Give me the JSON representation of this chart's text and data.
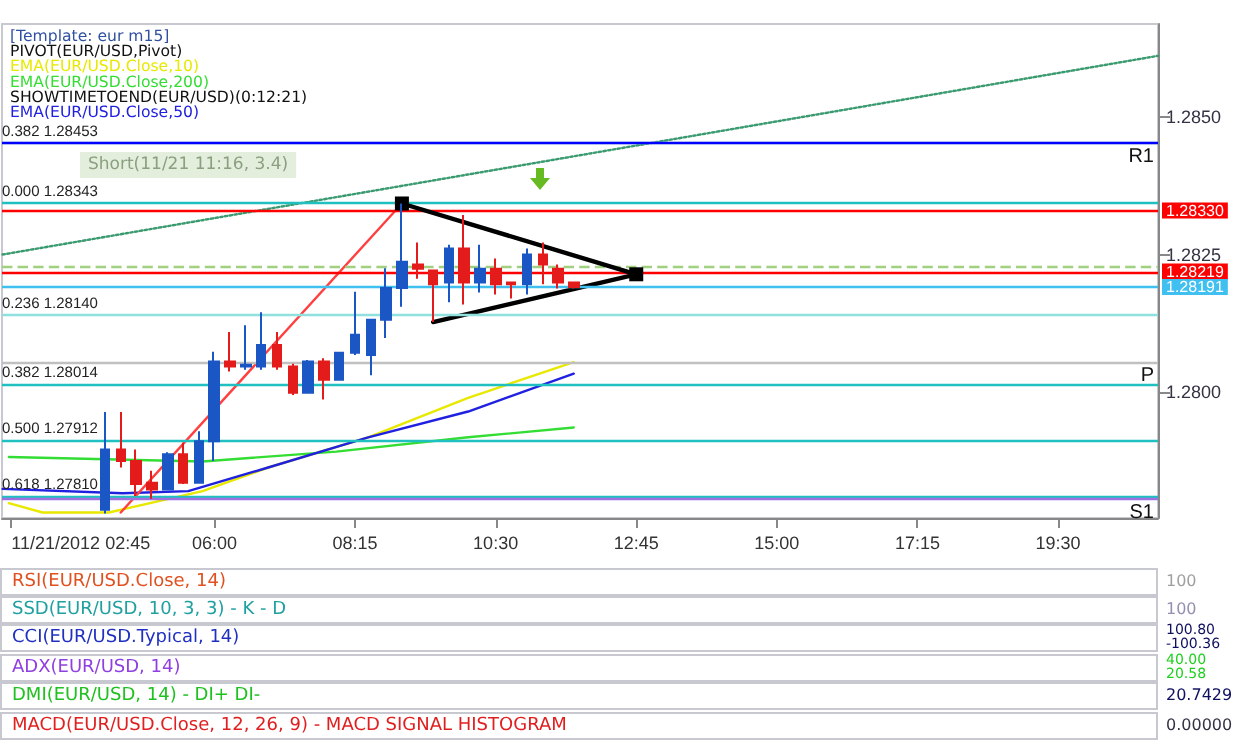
{
  "chart_data": [
    {
      "type": "candlestick",
      "annotations": [
        "[Template: eur m15]",
        "PIVOT(EUR/USD,Pivot)",
        "SHOWTIMETOEND(EUR/USD)(0:12:21)",
        "Short(11/21 11:16, 3.4)"
      ],
      "x": [
        4.25,
        4.5,
        4.75,
        5,
        5.25,
        5.5,
        5.75,
        6,
        6.25,
        6.5,
        6.75,
        7,
        7.25,
        7.5,
        7.75,
        8,
        8.25,
        8.5,
        8.75,
        9,
        9.25,
        9.5,
        9.75,
        10,
        10.25,
        10.5,
        10.75,
        11,
        11.25,
        11.5,
        11.75
      ],
      "ohlc": [
        [
          1.27785,
          1.27963,
          1.27778,
          1.27895
        ],
        [
          1.27895,
          1.27963,
          1.27862,
          1.27874
        ],
        [
          1.27874,
          1.27895,
          1.2781,
          1.27832
        ],
        [
          1.27834,
          1.27856,
          1.27805,
          1.27822
        ],
        [
          1.27822,
          1.2789,
          1.2782,
          1.27886
        ],
        [
          1.27886,
          1.27907,
          1.27832,
          1.27834
        ],
        [
          1.27834,
          1.27928,
          1.27834,
          1.2791
        ],
        [
          1.2791,
          1.28073,
          1.27874,
          1.28055
        ],
        [
          1.28055,
          1.28109,
          1.28037,
          1.28046
        ],
        [
          1.28046,
          1.28121,
          1.2804,
          1.28049
        ],
        [
          1.28046,
          1.28145,
          1.2804,
          1.28085
        ],
        [
          1.28085,
          1.28109,
          1.2804,
          1.28046
        ],
        [
          1.28046,
          1.28051,
          1.27994,
          1.27998
        ],
        [
          1.27998,
          1.28058,
          1.27998,
          1.28055
        ],
        [
          1.28055,
          1.28061,
          1.27986,
          1.28022
        ],
        [
          1.28022,
          1.28073,
          1.28022,
          1.28071
        ],
        [
          1.28071,
          1.28182,
          1.28067,
          1.28104
        ],
        [
          1.28067,
          1.28131,
          1.2803,
          1.28131
        ],
        [
          1.28131,
          1.28225,
          1.28098,
          1.28189
        ],
        [
          1.28189,
          1.28343,
          1.28155,
          1.28237
        ],
        [
          1.28232,
          1.28272,
          1.28206,
          1.28224
        ],
        [
          1.28221,
          1.28221,
          1.28127,
          1.28196
        ],
        [
          1.28199,
          1.28268,
          1.28163,
          1.28261
        ],
        [
          1.28261,
          1.28322,
          1.28159,
          1.28199
        ],
        [
          1.28199,
          1.28268,
          1.28181,
          1.28224
        ],
        [
          1.28224,
          1.28243,
          1.28177,
          1.28196
        ],
        [
          1.28199,
          1.28199,
          1.2817,
          1.28196
        ],
        [
          1.28196,
          1.28261,
          1.28177,
          1.2825
        ],
        [
          1.2825,
          1.28272,
          1.28196,
          1.28232
        ],
        [
          1.28224,
          1.28232,
          1.28188,
          1.28199
        ],
        [
          1.28199,
          1.28199,
          1.28188,
          1.28191
        ]
      ],
      "colors": [
        "#1a56c4",
        "#e41b1b",
        "#e41b1b",
        "#e41b1b",
        "#1a56c4",
        "#e41b1b",
        "#1a56c4",
        "#1a56c4",
        "#e41b1b",
        "#1a56c4",
        "#1a56c4",
        "#e41b1b",
        "#e41b1b",
        "#1a56c4",
        "#e41b1b",
        "#1a56c4",
        "#1a56c4",
        "#1a56c4",
        "#1a56c4",
        "#1a56c4",
        "#e41b1b",
        "#e41b1b",
        "#1a56c4",
        "#e41b1b",
        "#1a56c4",
        "#e41b1b",
        "#e41b1b",
        "#1a56c4",
        "#e41b1b",
        "#e41b1b",
        "#e41b1b"
      ],
      "series": [
        {
          "type": "line",
          "name": "EMA(EUR/USD.Close,10)",
          "color": "#e8e800",
          "x": [
            2.71,
            3.25,
            4.31,
            5.81,
            6.86,
            8.46,
            10.06,
            11.75
          ],
          "values": [
            1.27797,
            1.2778,
            1.2778,
            1.27819,
            1.27862,
            1.27917,
            1.27989,
            1.28054
          ]
        },
        {
          "type": "line",
          "name": "EMA(EUR/USD.Close,200)",
          "color": "#33dd33",
          "x": [
            2.71,
            5.81,
            7.95,
            10.06,
            11.75
          ],
          "values": [
            1.27881,
            1.27873,
            1.27891,
            1.27917,
            1.27935
          ]
        },
        {
          "type": "line",
          "name": "EMA(EUR/USD.Close,50)",
          "color": "#2020e0",
          "x": [
            2.61,
            4.53,
            5.58,
            6.86,
            8.46,
            10.06,
            11.75
          ],
          "values": [
            1.27823,
            1.27815,
            1.27819,
            1.27862,
            1.27917,
            1.27964,
            1.28033
          ]
        },
        {
          "type": "line",
          "color": "#3a9a70",
          "line_style": "dotted",
          "x": [
            2.61,
            21.1
          ],
          "values": [
            1.2825,
            1.28612
          ]
        },
        {
          "type": "line",
          "color": "#ff4040",
          "x": [
            4.5,
            9
          ],
          "values": [
            1.2778,
            1.28343
          ]
        },
        {
          "type": "line",
          "color": "#000000",
          "marker": "square",
          "x": [
            9,
            12.75
          ],
          "values": [
            1.28343,
            1.28214
          ]
        },
        {
          "type": "line",
          "color": "#000000",
          "x": [
            9.5,
            12.75
          ],
          "values": [
            1.28127,
            1.28214
          ]
        }
      ],
      "ref_lines": [
        {
          "axis": "y",
          "value": 1.28453,
          "label": "0.382 1.28453",
          "color": "#b0f0b0"
        },
        {
          "axis": "y",
          "value": 1.28453,
          "label": "R1",
          "color": "#0000ff"
        },
        {
          "axis": "y",
          "value": 1.28343,
          "label": "0.000 1.28343",
          "color": "#20c0c0"
        },
        {
          "axis": "y",
          "value": 1.2833,
          "label": "1.28330",
          "color": "#ff0000"
        },
        {
          "axis": "y",
          "value": 1.28228,
          "color": "#a0d080",
          "line_style": "dashed"
        },
        {
          "axis": "y",
          "value": 1.28219,
          "label": "1.28219",
          "color": "#ff0000"
        },
        {
          "axis": "y",
          "value": 1.28191,
          "label": "1.28191",
          "color": "#40c0f0"
        },
        {
          "axis": "y",
          "value": 1.2814,
          "label": "0.236 1.28140",
          "color": "#90e0e0"
        },
        {
          "axis": "y",
          "value": 1.28054,
          "label": "P",
          "color": "#c0c0c0"
        },
        {
          "axis": "y",
          "value": 1.28014,
          "label": "0.382 1.28014",
          "color": "#20c0c0"
        },
        {
          "axis": "y",
          "value": 1.27912,
          "label": "0.500 1.27912",
          "color": "#20c0c0"
        },
        {
          "axis": "y",
          "value": 1.2781,
          "label": "0.618 1.27810",
          "color": "#20c0c0"
        },
        {
          "axis": "y",
          "value": 1.27805,
          "label": "S1",
          "color": "#a070e0"
        }
      ],
      "xlim": [
        2.6,
        21.1
      ],
      "xticks": [
        {
          "value": 2.75,
          "label": "11/21/2012 02:45"
        },
        {
          "value": 6,
          "label": "06:00"
        },
        {
          "value": 8.25,
          "label": "08:15"
        },
        {
          "value": 10.5,
          "label": "10:30"
        },
        {
          "value": 12.75,
          "label": "12:45"
        },
        {
          "value": 15,
          "label": "15:00"
        },
        {
          "value": 17.25,
          "label": "17:15"
        },
        {
          "value": 19.5,
          "label": "19:30"
        }
      ],
      "ylim": [
        1.2777,
        1.2867
      ],
      "yticks": [
        {
          "value": 1.28,
          "label": "1.2800"
        },
        {
          "value": 1.2825,
          "label": "1.2825"
        },
        {
          "value": 1.285,
          "label": "1.2850"
        }
      ]
    },
    {
      "type": "other",
      "title": "RSI(EUR/USD.Close, 14)",
      "annotations": [
        "100"
      ]
    },
    {
      "type": "other",
      "title": "SSD(EUR/USD, 10, 3, 3) - K - D",
      "annotations": [
        "100"
      ]
    },
    {
      "type": "other",
      "title": "CCI(EUR/USD.Typical, 14)",
      "annotations": [
        "100.80",
        "-100.36"
      ]
    },
    {
      "type": "other",
      "title": "ADX(EUR/USD, 14)",
      "annotations": [
        "40.00",
        "20.58"
      ]
    },
    {
      "type": "other",
      "title": "DMI(EUR/USD, 14) - DI+ DI-",
      "annotations": [
        "20.7429"
      ]
    },
    {
      "type": "other",
      "title": "MACD(EUR/USD.Close, 12, 26, 9) - MACD SIGNAL HISTOGRAM",
      "annotations": [
        "0.00000"
      ]
    }
  ]
}
